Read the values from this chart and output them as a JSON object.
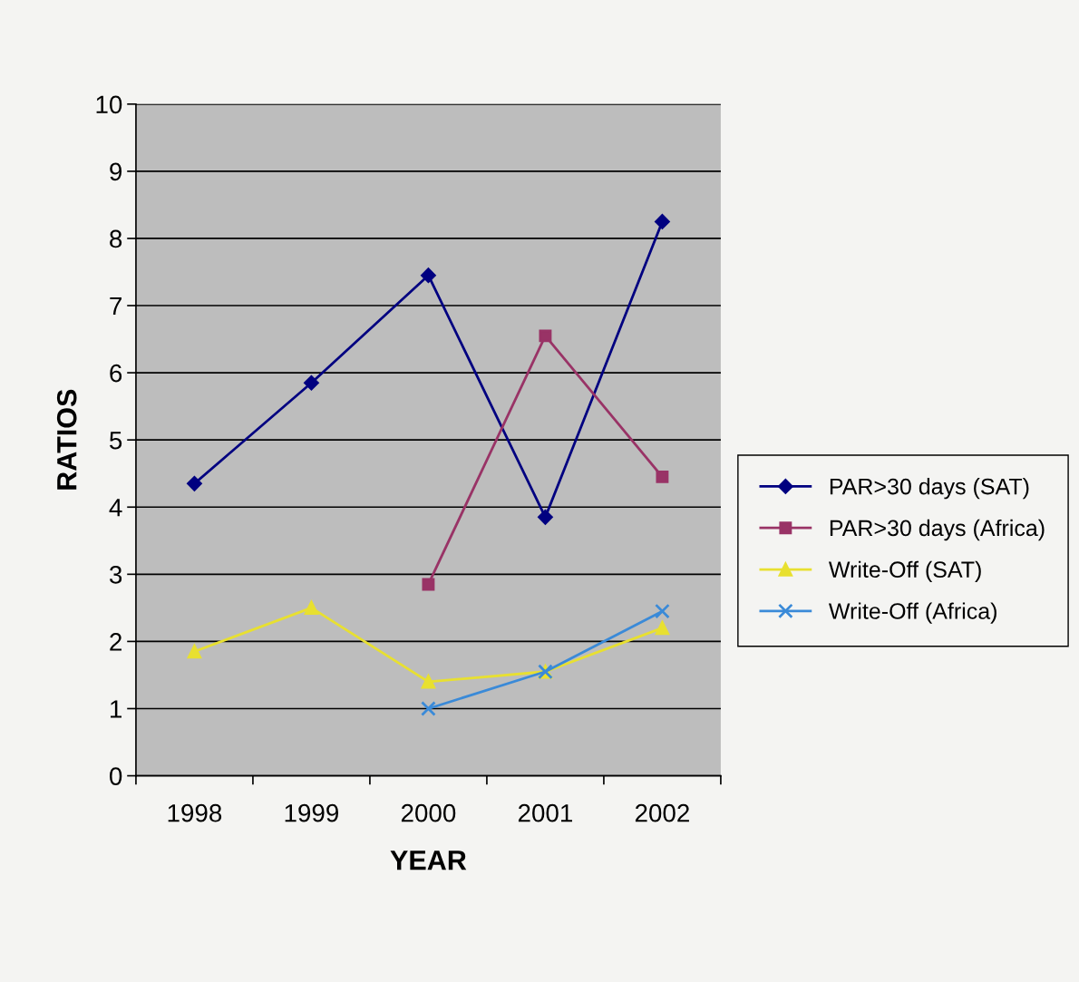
{
  "chart_data": {
    "type": "line",
    "xlabel": "YEAR",
    "ylabel": "RATIOS",
    "categories": [
      "1998",
      "1999",
      "2000",
      "2001",
      "2002"
    ],
    "series": [
      {
        "name": "PAR>30 days (SAT)",
        "color": "#000080",
        "marker": "diamond",
        "values": [
          4.35,
          5.85,
          7.45,
          3.85,
          8.25
        ]
      },
      {
        "name": "PAR>30 days (Africa)",
        "color": "#993366",
        "marker": "square",
        "values": [
          null,
          null,
          2.85,
          6.55,
          4.45
        ]
      },
      {
        "name": "Write-Off (SAT)",
        "color": "#e8e030",
        "marker": "triangle",
        "values": [
          1.85,
          2.5,
          1.4,
          1.55,
          2.2
        ]
      },
      {
        "name": "Write-Off (Africa)",
        "color": "#3a8ad8",
        "marker": "cross",
        "values": [
          null,
          null,
          1.0,
          1.55,
          2.45
        ]
      }
    ],
    "ylim": [
      0,
      10
    ],
    "yticks": [
      0,
      1,
      2,
      3,
      4,
      5,
      6,
      7,
      8,
      9,
      10
    ],
    "grid": "y",
    "legend": "right",
    "line_style": "solid"
  }
}
